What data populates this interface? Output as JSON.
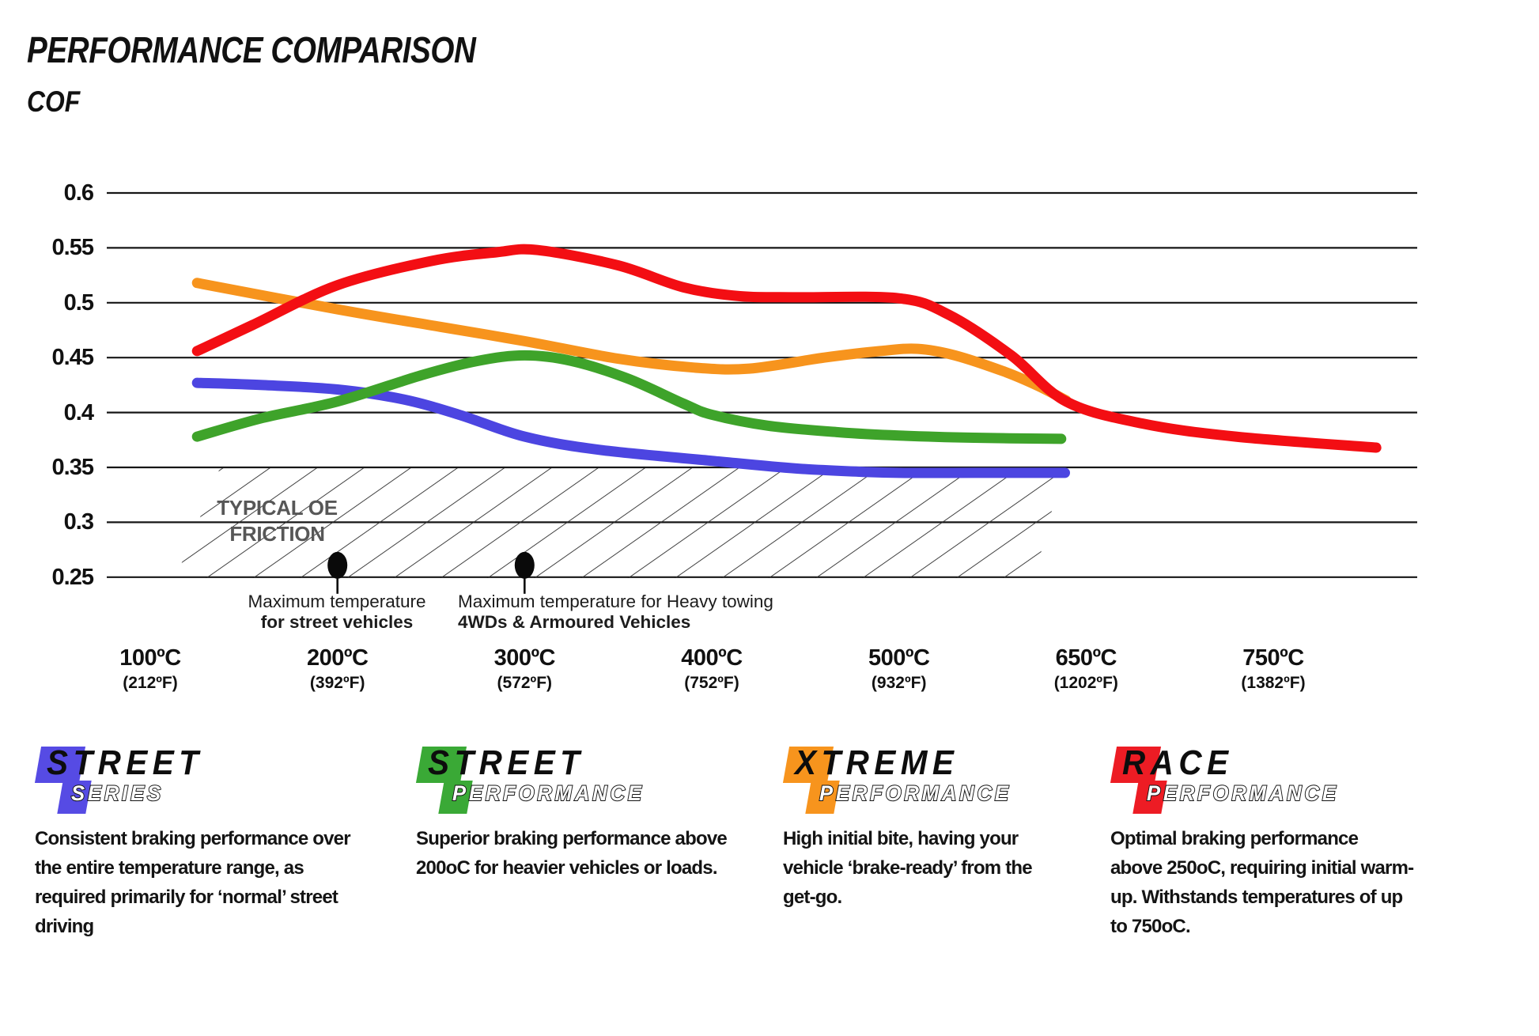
{
  "page": {
    "title": "PERFORMANCE COMPARISON",
    "y_axis_title": "COF"
  },
  "chart_data": {
    "type": "line",
    "title": "PERFORMANCE COMPARISON",
    "ylabel": "COF",
    "grid": "horizontal",
    "ylim": [
      0.25,
      0.6
    ],
    "y_ticks": [
      "0.6",
      "0.55",
      "0.5",
      "0.45",
      "0.4",
      "0.35",
      "0.3",
      "0.25"
    ],
    "x_axis_note": "temperature ticks equally spaced (non-linear scale)",
    "x_tick_temps": [
      100,
      200,
      300,
      400,
      500,
      650,
      750
    ],
    "x_ticks": [
      {
        "c": "100ºC",
        "f": "(212ºF)"
      },
      {
        "c": "200ºC",
        "f": "(392ºF)"
      },
      {
        "c": "300ºC",
        "f": "(572ºF)"
      },
      {
        "c": "400ºC",
        "f": "(752ºF)"
      },
      {
        "c": "500ºC",
        "f": "(932ºF)"
      },
      {
        "c": "650ºC",
        "f": "(1202ºF)"
      },
      {
        "c": "750ºC",
        "f": "(1382ºF)"
      }
    ],
    "oe_band": {
      "label_line1": "TYPICAL OE",
      "label_line2": "FRICTION",
      "cof_range": [
        0.25,
        0.35
      ]
    },
    "series": [
      {
        "name": "Street Series",
        "color": "#4c45e1",
        "points": [
          [
            125,
            0.427
          ],
          [
            160,
            0.425
          ],
          [
            200,
            0.421
          ],
          [
            235,
            0.412
          ],
          [
            265,
            0.398
          ],
          [
            300,
            0.378
          ],
          [
            340,
            0.366
          ],
          [
            400,
            0.356
          ],
          [
            445,
            0.349
          ],
          [
            480,
            0.346
          ],
          [
            500,
            0.345
          ],
          [
            560,
            0.345
          ],
          [
            633,
            0.345
          ]
        ]
      },
      {
        "name": "Street Performance",
        "color": "#3ea32a",
        "points": [
          [
            125,
            0.378
          ],
          [
            160,
            0.395
          ],
          [
            200,
            0.41
          ],
          [
            245,
            0.434
          ],
          [
            275,
            0.447
          ],
          [
            300,
            0.452
          ],
          [
            325,
            0.447
          ],
          [
            355,
            0.431
          ],
          [
            385,
            0.408
          ],
          [
            400,
            0.398
          ],
          [
            430,
            0.388
          ],
          [
            468,
            0.382
          ],
          [
            500,
            0.379
          ],
          [
            560,
            0.377
          ],
          [
            630,
            0.376
          ]
        ]
      },
      {
        "name": "Xtreme Performance",
        "color": "#f7941d",
        "points": [
          [
            125,
            0.518
          ],
          [
            200,
            0.494
          ],
          [
            255,
            0.478
          ],
          [
            300,
            0.465
          ],
          [
            350,
            0.449
          ],
          [
            390,
            0.441
          ],
          [
            420,
            0.44
          ],
          [
            460,
            0.45
          ],
          [
            490,
            0.456
          ],
          [
            515,
            0.458
          ],
          [
            545,
            0.452
          ],
          [
            585,
            0.437
          ],
          [
            612,
            0.424
          ],
          [
            634,
            0.411
          ]
        ]
      },
      {
        "name": "Race Performance",
        "color": "#f30e13",
        "points": [
          [
            125,
            0.456
          ],
          [
            155,
            0.48
          ],
          [
            200,
            0.516
          ],
          [
            250,
            0.538
          ],
          [
            285,
            0.546
          ],
          [
            307,
            0.548
          ],
          [
            350,
            0.534
          ],
          [
            385,
            0.514
          ],
          [
            415,
            0.506
          ],
          [
            445,
            0.505
          ],
          [
            500,
            0.504
          ],
          [
            540,
            0.489
          ],
          [
            590,
            0.452
          ],
          [
            634,
            0.41
          ],
          [
            680,
            0.39
          ],
          [
            730,
            0.378
          ],
          [
            805,
            0.368
          ]
        ]
      }
    ],
    "annotations": [
      {
        "t": 200,
        "line1": "Maximum temperature",
        "line2": "for street vehicles"
      },
      {
        "t": 300,
        "line1": "Maximum temperature for Heavy towing",
        "line2": "4WDs & Armoured Vehicles"
      }
    ]
  },
  "legend": {
    "items": [
      {
        "word1": "STREET",
        "word2": "SERIES",
        "color": "#564be4",
        "description": "Consistent braking performance over\nthe entire temperature range, as\nrequired primarily for ‘normal’ street\ndriving"
      },
      {
        "word1": "STREET",
        "word2": "PERFORMANCE",
        "color": "#3aa936",
        "description": "Superior braking performance above\n200oC for heavier vehicles or loads."
      },
      {
        "word1": "XTREME",
        "word2": "PERFORMANCE",
        "color": "#f7941d",
        "description": "High initial bite, having your\nvehicle ‘brake-ready’ from the\nget-go."
      },
      {
        "word1": "RACE",
        "word2": "PERFORMANCE",
        "color": "#ed1c24",
        "description": "Optimal braking performance\nabove 250oC, requiring initial warm-\nup. Withstands temperatures of up\nto 750oC."
      }
    ]
  }
}
